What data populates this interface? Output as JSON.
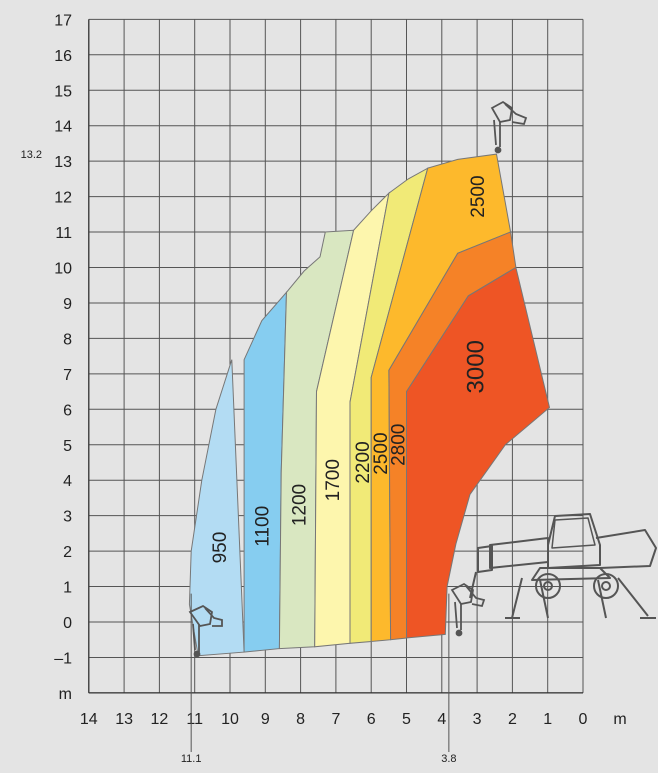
{
  "chart_data": {
    "type": "area",
    "title": "",
    "xlabel": "m",
    "ylabel": "m",
    "xlim": [
      14,
      0
    ],
    "ylim": [
      -2,
      17
    ],
    "x_ticks": [
      "14",
      "13",
      "12",
      "11",
      "10",
      "9",
      "8",
      "7",
      "6",
      "5",
      "4",
      "3",
      "2",
      "1",
      "0"
    ],
    "y_ticks": [
      "17",
      "16",
      "15",
      "14",
      "13",
      "12",
      "11",
      "10",
      "9",
      "8",
      "7",
      "6",
      "5",
      "4",
      "3",
      "2",
      "1",
      "0",
      "–1"
    ],
    "grid": true,
    "annotations": [
      {
        "text": "13.2",
        "axis": "y",
        "value": 13.2
      },
      {
        "text": "11.1",
        "axis": "x",
        "value": 11.1
      },
      {
        "text": "3.8",
        "axis": "x",
        "value": 3.8
      }
    ],
    "zone_labels": [
      "950",
      "1100",
      "1200",
      "1700",
      "2200",
      "2500",
      "2800",
      "2500",
      "3000"
    ],
    "zones": [
      {
        "label": "950",
        "color": "#b3dcf3",
        "polygon": [
          [
            10.9,
            -0.95
          ],
          [
            11.15,
            0.5
          ],
          [
            11.1,
            2
          ],
          [
            10.8,
            4
          ],
          [
            10.4,
            6
          ],
          [
            9.95,
            7.4
          ],
          [
            9.6,
            -0.85
          ]
        ]
      },
      {
        "label": "1100",
        "color": "#86cdf0",
        "polygon": [
          [
            9.6,
            -0.85
          ],
          [
            9.6,
            7.4
          ],
          [
            9.1,
            8.5
          ],
          [
            8.4,
            9.3
          ],
          [
            8.55,
            4.2
          ],
          [
            8.6,
            -0.75
          ]
        ]
      },
      {
        "label": "1200",
        "color": "#d9e7c1",
        "polygon": [
          [
            8.6,
            -0.75
          ],
          [
            8.55,
            4.2
          ],
          [
            8.4,
            9.3
          ],
          [
            7.9,
            9.9
          ],
          [
            7.45,
            10.3
          ],
          [
            7.3,
            11.0
          ],
          [
            6.5,
            11.05
          ],
          [
            7.55,
            6.5
          ],
          [
            7.6,
            -0.7
          ]
        ]
      },
      {
        "label": "1700",
        "color": "#fdf6ad",
        "polygon": [
          [
            7.6,
            -0.7
          ],
          [
            7.55,
            6.5
          ],
          [
            6.5,
            11.05
          ],
          [
            6.0,
            11.6
          ],
          [
            5.5,
            12.1
          ],
          [
            6.6,
            6.2
          ],
          [
            6.6,
            -0.6
          ]
        ]
      },
      {
        "label": "2200",
        "color": "#f1ea77",
        "polygon": [
          [
            6.6,
            -0.6
          ],
          [
            6.6,
            6.2
          ],
          [
            5.5,
            12.1
          ],
          [
            4.95,
            12.5
          ],
          [
            4.4,
            12.8
          ],
          [
            6.0,
            6.9
          ],
          [
            6.0,
            -0.55
          ]
        ]
      },
      {
        "label": "2500",
        "color": "#fdb92c",
        "polygon": [
          [
            6.0,
            -0.55
          ],
          [
            6.0,
            6.9
          ],
          [
            4.4,
            12.8
          ],
          [
            3.55,
            13.05
          ],
          [
            2.45,
            13.2
          ],
          [
            2.05,
            11.0
          ],
          [
            3.55,
            10.4
          ],
          [
            5.5,
            7.1
          ],
          [
            5.45,
            -0.5
          ]
        ]
      },
      {
        "label": "2800",
        "color": "#f58227",
        "polygon": [
          [
            5.45,
            -0.5
          ],
          [
            5.5,
            7.1
          ],
          [
            3.55,
            10.4
          ],
          [
            2.05,
            11.0
          ],
          [
            1.9,
            10.0
          ],
          [
            3.25,
            9.2
          ],
          [
            5.0,
            6.5
          ],
          [
            5.0,
            -0.45
          ]
        ]
      },
      {
        "label": "3000",
        "color": "#ee5525",
        "polygon": [
          [
            5.0,
            -0.45
          ],
          [
            5.0,
            6.5
          ],
          [
            3.25,
            9.2
          ],
          [
            1.9,
            10.0
          ],
          [
            0.95,
            6.05
          ],
          [
            2.2,
            5.0
          ],
          [
            3.2,
            3.6
          ],
          [
            3.6,
            2.2
          ],
          [
            3.85,
            1.0
          ],
          [
            3.9,
            -0.35
          ]
        ]
      }
    ],
    "text_labels": [
      {
        "text": "950",
        "x": 10.25,
        "y": 2.1,
        "size": "zone"
      },
      {
        "text": "1100",
        "x": 9.05,
        "y": 2.7,
        "size": "zone"
      },
      {
        "text": "1200",
        "x": 8.0,
        "y": 3.3,
        "size": "zone"
      },
      {
        "text": "1700",
        "x": 7.05,
        "y": 4.0,
        "size": "zone"
      },
      {
        "text": "2200",
        "x": 6.2,
        "y": 4.5,
        "size": "zone"
      },
      {
        "text": "2500",
        "x": 5.7,
        "y": 4.75,
        "size": "zone"
      },
      {
        "text": "2800",
        "x": 5.2,
        "y": 5.0,
        "size": "zone"
      },
      {
        "text": "2500",
        "x": 2.95,
        "y": 12.0,
        "size": "zone"
      },
      {
        "text": "3000",
        "x": 3.0,
        "y": 7.2,
        "size": "big"
      }
    ]
  }
}
